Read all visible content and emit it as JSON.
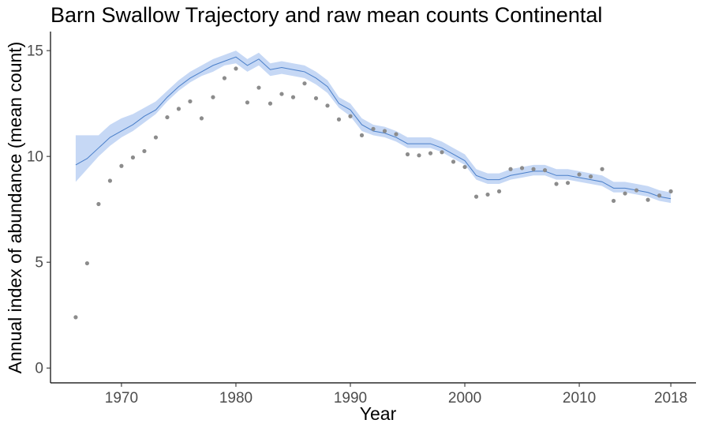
{
  "chart_data": {
    "type": "line",
    "title": "Barn Swallow Trajectory and raw mean counts Continental",
    "xlabel": "Year",
    "ylabel": "Annual index of abundance (mean count)",
    "xlim": [
      1963.8,
      2020.2
    ],
    "ylim": [
      -0.7,
      15.9
    ],
    "x_ticks": [
      1970,
      1980,
      1990,
      2000,
      2010,
      2018
    ],
    "y_ticks": [
      0,
      5,
      10,
      15
    ],
    "grid": false,
    "legend": "none",
    "colors": {
      "trajectory_line": "#4a7fc9",
      "ribbon": "#c6d8f5",
      "points": "#8c8c8c",
      "axis": "#000000",
      "tick_text": "#4d4d4d"
    },
    "series": [
      {
        "kind": "trajectory",
        "x": [
          1966,
          1967,
          1968,
          1969,
          1970,
          1971,
          1972,
          1973,
          1974,
          1975,
          1976,
          1977,
          1978,
          1979,
          1980,
          1981,
          1982,
          1983,
          1984,
          1985,
          1986,
          1987,
          1988,
          1989,
          1990,
          1991,
          1992,
          1993,
          1994,
          1995,
          1996,
          1997,
          1998,
          1999,
          2000,
          2001,
          2002,
          2003,
          2004,
          2005,
          2006,
          2007,
          2008,
          2009,
          2010,
          2011,
          2012,
          2013,
          2014,
          2015,
          2016,
          2017,
          2018
        ],
        "y": [
          9.6,
          9.9,
          10.4,
          10.9,
          11.2,
          11.5,
          11.9,
          12.2,
          12.8,
          13.3,
          13.7,
          14.0,
          14.3,
          14.5,
          14.7,
          14.3,
          14.6,
          14.1,
          14.2,
          14.1,
          14.0,
          13.7,
          13.3,
          12.5,
          12.2,
          11.5,
          11.2,
          11.1,
          10.9,
          10.6,
          10.6,
          10.6,
          10.4,
          10.1,
          9.8,
          9.1,
          8.9,
          8.9,
          9.1,
          9.2,
          9.3,
          9.3,
          9.1,
          9.1,
          9.0,
          8.9,
          8.8,
          8.5,
          8.5,
          8.4,
          8.3,
          8.1,
          8.0
        ],
        "lower": [
          8.8,
          9.4,
          10.0,
          10.5,
          10.9,
          11.2,
          11.6,
          12.0,
          12.6,
          13.1,
          13.5,
          13.8,
          14.0,
          14.3,
          14.4,
          14.0,
          14.3,
          13.8,
          13.9,
          13.8,
          13.7,
          13.4,
          13.0,
          12.3,
          11.9,
          11.2,
          11.0,
          10.9,
          10.7,
          10.4,
          10.4,
          10.4,
          10.2,
          9.9,
          9.6,
          8.9,
          8.7,
          8.7,
          8.9,
          9.0,
          9.1,
          9.1,
          8.9,
          8.9,
          8.8,
          8.7,
          8.6,
          8.3,
          8.3,
          8.2,
          8.1,
          7.9,
          7.8
        ],
        "upper": [
          11.0,
          11.0,
          11.0,
          11.5,
          11.8,
          12.0,
          12.3,
          12.6,
          13.1,
          13.6,
          14.0,
          14.3,
          14.6,
          14.8,
          15.0,
          14.6,
          14.9,
          14.4,
          14.5,
          14.4,
          14.3,
          14.0,
          13.6,
          12.8,
          12.5,
          11.8,
          11.5,
          11.4,
          11.2,
          10.9,
          10.9,
          10.9,
          10.7,
          10.4,
          10.1,
          9.4,
          9.2,
          9.2,
          9.4,
          9.5,
          9.6,
          9.6,
          9.4,
          9.4,
          9.3,
          9.2,
          9.1,
          8.8,
          8.8,
          8.7,
          8.6,
          8.4,
          8.3
        ]
      },
      {
        "kind": "raw_counts",
        "x": [
          1966,
          1967,
          1968,
          1969,
          1970,
          1971,
          1972,
          1973,
          1974,
          1975,
          1976,
          1977,
          1978,
          1979,
          1980,
          1981,
          1982,
          1983,
          1984,
          1985,
          1986,
          1987,
          1988,
          1989,
          1990,
          1991,
          1992,
          1993,
          1994,
          1995,
          1996,
          1997,
          1998,
          1999,
          2000,
          2001,
          2002,
          2003,
          2004,
          2005,
          2006,
          2007,
          2008,
          2009,
          2010,
          2011,
          2012,
          2013,
          2014,
          2015,
          2016,
          2017,
          2018
        ],
        "y": [
          2.4,
          4.95,
          7.75,
          8.85,
          9.55,
          9.95,
          10.25,
          10.9,
          11.85,
          12.25,
          12.6,
          11.8,
          12.8,
          13.7,
          14.15,
          12.55,
          13.25,
          12.5,
          12.95,
          12.8,
          13.45,
          12.75,
          12.4,
          11.75,
          11.9,
          11.0,
          11.3,
          11.2,
          11.05,
          10.1,
          10.05,
          10.15,
          10.2,
          9.75,
          9.5,
          8.1,
          8.2,
          8.35,
          9.4,
          9.45,
          9.4,
          9.35,
          8.7,
          8.75,
          9.15,
          9.05,
          9.4,
          7.9,
          8.25,
          8.4,
          7.95,
          8.15,
          8.35
        ]
      }
    ]
  }
}
